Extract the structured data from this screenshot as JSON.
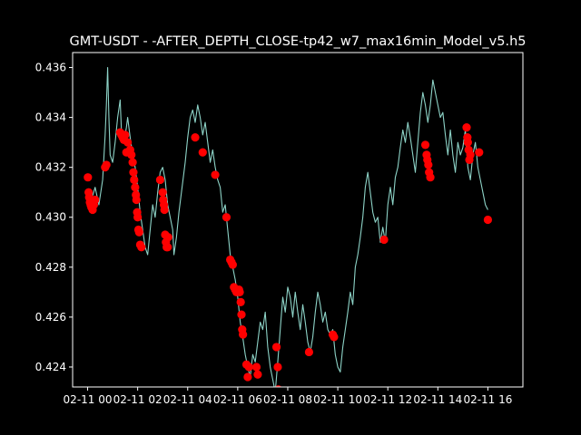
{
  "chart_data": {
    "type": "line",
    "title": "GMT-USDT - -AFTER_DEPTH_CLOSE-tp42_w7_max16min_Model_v5.h5",
    "xlabel": "",
    "ylabel": "",
    "x_unit": "hours after 2024-02-11 00:00",
    "xlim": [
      -0.6,
      17.4
    ],
    "ylim": [
      0.4232,
      0.4366
    ],
    "x_ticks": [
      {
        "value": 0,
        "label": "02-11 00"
      },
      {
        "value": 2,
        "label": "02-11 02"
      },
      {
        "value": 4,
        "label": "02-11 04"
      },
      {
        "value": 6,
        "label": "02-11 06"
      },
      {
        "value": 8,
        "label": "02-11 08"
      },
      {
        "value": 10,
        "label": "02-11 10"
      },
      {
        "value": 12,
        "label": "02-11 12"
      },
      {
        "value": 14,
        "label": "02-11 14"
      },
      {
        "value": 16,
        "label": "02-11 16"
      }
    ],
    "y_ticks": [
      {
        "value": 0.424,
        "label": "0.424"
      },
      {
        "value": 0.426,
        "label": "0.426"
      },
      {
        "value": 0.428,
        "label": "0.428"
      },
      {
        "value": 0.43,
        "label": "0.430"
      },
      {
        "value": 0.432,
        "label": "0.432"
      },
      {
        "value": 0.434,
        "label": "0.434"
      },
      {
        "value": 0.436,
        "label": "0.436"
      }
    ],
    "grid": false,
    "colors": {
      "background": "#000000",
      "line": "#8dd3c7",
      "markers": "#ff0000",
      "text": "#ffffff"
    },
    "series": [
      {
        "kind": "line",
        "points": [
          [
            0.0,
            0.431
          ],
          [
            0.15,
            0.4307
          ],
          [
            0.3,
            0.4312
          ],
          [
            0.45,
            0.4305
          ],
          [
            0.6,
            0.4315
          ],
          [
            0.7,
            0.4333
          ],
          [
            0.75,
            0.4345
          ],
          [
            0.8,
            0.436
          ],
          [
            0.85,
            0.434
          ],
          [
            0.9,
            0.4325
          ],
          [
            1.0,
            0.4322
          ],
          [
            1.1,
            0.433
          ],
          [
            1.2,
            0.434
          ],
          [
            1.3,
            0.4347
          ],
          [
            1.35,
            0.4335
          ],
          [
            1.45,
            0.433
          ],
          [
            1.55,
            0.4336
          ],
          [
            1.6,
            0.434
          ],
          [
            1.7,
            0.4332
          ],
          [
            1.8,
            0.4325
          ],
          [
            1.9,
            0.432
          ],
          [
            2.0,
            0.4312
          ],
          [
            2.1,
            0.4302
          ],
          [
            2.2,
            0.4295
          ],
          [
            2.3,
            0.4288
          ],
          [
            2.4,
            0.4285
          ],
          [
            2.5,
            0.4295
          ],
          [
            2.6,
            0.4305
          ],
          [
            2.7,
            0.43
          ],
          [
            2.8,
            0.431
          ],
          [
            2.9,
            0.4318
          ],
          [
            3.0,
            0.432
          ],
          [
            3.1,
            0.4315
          ],
          [
            3.2,
            0.4305
          ],
          [
            3.3,
            0.43
          ],
          [
            3.4,
            0.4295
          ],
          [
            3.45,
            0.4285
          ],
          [
            3.55,
            0.4292
          ],
          [
            3.65,
            0.4302
          ],
          [
            3.75,
            0.431
          ],
          [
            3.9,
            0.4322
          ],
          [
            4.0,
            0.4332
          ],
          [
            4.1,
            0.434
          ],
          [
            4.2,
            0.4343
          ],
          [
            4.3,
            0.4338
          ],
          [
            4.4,
            0.4345
          ],
          [
            4.5,
            0.434
          ],
          [
            4.6,
            0.4333
          ],
          [
            4.7,
            0.4338
          ],
          [
            4.8,
            0.433
          ],
          [
            4.9,
            0.4322
          ],
          [
            5.0,
            0.4327
          ],
          [
            5.1,
            0.432
          ],
          [
            5.2,
            0.4315
          ],
          [
            5.3,
            0.4312
          ],
          [
            5.4,
            0.4302
          ],
          [
            5.5,
            0.4305
          ],
          [
            5.6,
            0.4295
          ],
          [
            5.7,
            0.4285
          ],
          [
            5.8,
            0.428
          ],
          [
            5.9,
            0.4275
          ],
          [
            6.0,
            0.4268
          ],
          [
            6.1,
            0.4258
          ],
          [
            6.2,
            0.4252
          ],
          [
            6.3,
            0.4245
          ],
          [
            6.4,
            0.424
          ],
          [
            6.5,
            0.4236
          ],
          [
            6.6,
            0.4245
          ],
          [
            6.7,
            0.4242
          ],
          [
            6.8,
            0.425
          ],
          [
            6.9,
            0.4258
          ],
          [
            7.0,
            0.4255
          ],
          [
            7.1,
            0.4262
          ],
          [
            7.2,
            0.4248
          ],
          [
            7.3,
            0.424
          ],
          [
            7.4,
            0.4235
          ],
          [
            7.5,
            0.423
          ],
          [
            7.6,
            0.4242
          ],
          [
            7.7,
            0.4255
          ],
          [
            7.8,
            0.4268
          ],
          [
            7.9,
            0.4262
          ],
          [
            8.0,
            0.4272
          ],
          [
            8.1,
            0.4268
          ],
          [
            8.2,
            0.426
          ],
          [
            8.3,
            0.427
          ],
          [
            8.4,
            0.4262
          ],
          [
            8.5,
            0.4255
          ],
          [
            8.6,
            0.4265
          ],
          [
            8.7,
            0.4258
          ],
          [
            8.8,
            0.425
          ],
          [
            8.9,
            0.4246
          ],
          [
            9.0,
            0.4252
          ],
          [
            9.1,
            0.4262
          ],
          [
            9.2,
            0.427
          ],
          [
            9.3,
            0.4265
          ],
          [
            9.4,
            0.4258
          ],
          [
            9.5,
            0.4262
          ],
          [
            9.6,
            0.4255
          ],
          [
            9.7,
            0.4253
          ],
          [
            9.8,
            0.4255
          ],
          [
            9.9,
            0.4245
          ],
          [
            10.0,
            0.424
          ],
          [
            10.1,
            0.4238
          ],
          [
            10.2,
            0.4248
          ],
          [
            10.3,
            0.4255
          ],
          [
            10.4,
            0.4262
          ],
          [
            10.5,
            0.427
          ],
          [
            10.6,
            0.4265
          ],
          [
            10.7,
            0.428
          ],
          [
            10.8,
            0.4285
          ],
          [
            10.9,
            0.4292
          ],
          [
            11.0,
            0.43
          ],
          [
            11.1,
            0.4312
          ],
          [
            11.2,
            0.4318
          ],
          [
            11.3,
            0.431
          ],
          [
            11.4,
            0.4302
          ],
          [
            11.5,
            0.4298
          ],
          [
            11.6,
            0.43
          ],
          [
            11.7,
            0.429
          ],
          [
            11.8,
            0.4296
          ],
          [
            11.9,
            0.429
          ],
          [
            12.0,
            0.4305
          ],
          [
            12.1,
            0.4312
          ],
          [
            12.2,
            0.4305
          ],
          [
            12.3,
            0.4316
          ],
          [
            12.4,
            0.432
          ],
          [
            12.5,
            0.4328
          ],
          [
            12.6,
            0.4335
          ],
          [
            12.7,
            0.433
          ],
          [
            12.8,
            0.4338
          ],
          [
            12.9,
            0.4332
          ],
          [
            13.0,
            0.4325
          ],
          [
            13.1,
            0.4318
          ],
          [
            13.2,
            0.433
          ],
          [
            13.3,
            0.4342
          ],
          [
            13.4,
            0.435
          ],
          [
            13.5,
            0.4345
          ],
          [
            13.6,
            0.4338
          ],
          [
            13.7,
            0.4345
          ],
          [
            13.8,
            0.4355
          ],
          [
            13.9,
            0.435
          ],
          [
            14.0,
            0.4345
          ],
          [
            14.1,
            0.434
          ],
          [
            14.2,
            0.4342
          ],
          [
            14.3,
            0.4333
          ],
          [
            14.4,
            0.4325
          ],
          [
            14.5,
            0.4335
          ],
          [
            14.6,
            0.4325
          ],
          [
            14.7,
            0.4318
          ],
          [
            14.8,
            0.433
          ],
          [
            14.9,
            0.4325
          ],
          [
            15.0,
            0.4328
          ],
          [
            15.1,
            0.4335
          ],
          [
            15.2,
            0.432
          ],
          [
            15.3,
            0.4315
          ],
          [
            15.4,
            0.4325
          ],
          [
            15.5,
            0.433
          ],
          [
            15.6,
            0.432
          ],
          [
            15.7,
            0.4315
          ],
          [
            15.8,
            0.431
          ],
          [
            15.9,
            0.4305
          ],
          [
            16.0,
            0.4303
          ]
        ]
      },
      {
        "kind": "scatter",
        "points": [
          [
            0.01,
            0.4316
          ],
          [
            0.04,
            0.431
          ],
          [
            0.06,
            0.4308
          ],
          [
            0.09,
            0.4306
          ],
          [
            0.12,
            0.4305
          ],
          [
            0.15,
            0.4304
          ],
          [
            0.2,
            0.4303
          ],
          [
            0.25,
            0.4305
          ],
          [
            0.3,
            0.4307
          ],
          [
            0.7,
            0.432
          ],
          [
            0.75,
            0.4321
          ],
          [
            1.3,
            0.4334
          ],
          [
            1.35,
            0.4333
          ],
          [
            1.4,
            0.4332
          ],
          [
            1.45,
            0.4331
          ],
          [
            1.5,
            0.4333
          ],
          [
            1.55,
            0.4326
          ],
          [
            1.6,
            0.433
          ],
          [
            1.7,
            0.4327
          ],
          [
            1.75,
            0.4325
          ],
          [
            1.8,
            0.4322
          ],
          [
            1.83,
            0.4318
          ],
          [
            1.86,
            0.4315
          ],
          [
            1.9,
            0.4312
          ],
          [
            1.93,
            0.4309
          ],
          [
            1.95,
            0.4307
          ],
          [
            1.98,
            0.4302
          ],
          [
            2.0,
            0.43
          ],
          [
            2.03,
            0.4295
          ],
          [
            2.06,
            0.4294
          ],
          [
            2.1,
            0.4289
          ],
          [
            2.15,
            0.4288
          ],
          [
            2.9,
            0.4315
          ],
          [
            3.0,
            0.431
          ],
          [
            3.02,
            0.4307
          ],
          [
            3.05,
            0.4305
          ],
          [
            3.07,
            0.4303
          ],
          [
            3.1,
            0.4293
          ],
          [
            3.13,
            0.429
          ],
          [
            3.16,
            0.4288
          ],
          [
            3.2,
            0.4288
          ],
          [
            3.22,
            0.4292
          ],
          [
            4.3,
            0.4332
          ],
          [
            4.6,
            0.4326
          ],
          [
            5.1,
            0.4317
          ],
          [
            5.55,
            0.43
          ],
          [
            5.7,
            0.4283
          ],
          [
            5.75,
            0.4282
          ],
          [
            5.8,
            0.4281
          ],
          [
            5.85,
            0.4272
          ],
          [
            5.9,
            0.4271
          ],
          [
            5.95,
            0.427
          ],
          [
            6.05,
            0.4271
          ],
          [
            6.08,
            0.427
          ],
          [
            6.12,
            0.4266
          ],
          [
            6.15,
            0.4261
          ],
          [
            6.18,
            0.4255
          ],
          [
            6.21,
            0.4253
          ],
          [
            6.35,
            0.4241
          ],
          [
            6.4,
            0.4236
          ],
          [
            6.45,
            0.424
          ],
          [
            6.75,
            0.424
          ],
          [
            6.8,
            0.4237
          ],
          [
            7.55,
            0.4248
          ],
          [
            7.6,
            0.424
          ],
          [
            7.62,
            0.4231
          ],
          [
            7.65,
            0.423
          ],
          [
            7.68,
            0.4229
          ],
          [
            8.85,
            0.4246
          ],
          [
            9.8,
            0.4253
          ],
          [
            9.85,
            0.4252
          ],
          [
            11.85,
            0.4291
          ],
          [
            13.5,
            0.4329
          ],
          [
            13.55,
            0.4325
          ],
          [
            13.58,
            0.4323
          ],
          [
            13.62,
            0.4321
          ],
          [
            13.65,
            0.4318
          ],
          [
            13.7,
            0.4316
          ],
          [
            15.15,
            0.4336
          ],
          [
            15.18,
            0.4332
          ],
          [
            15.2,
            0.433
          ],
          [
            15.23,
            0.4327
          ],
          [
            15.26,
            0.4323
          ],
          [
            15.3,
            0.4325
          ],
          [
            15.65,
            0.4326
          ],
          [
            16.0,
            0.4299
          ]
        ]
      }
    ]
  }
}
